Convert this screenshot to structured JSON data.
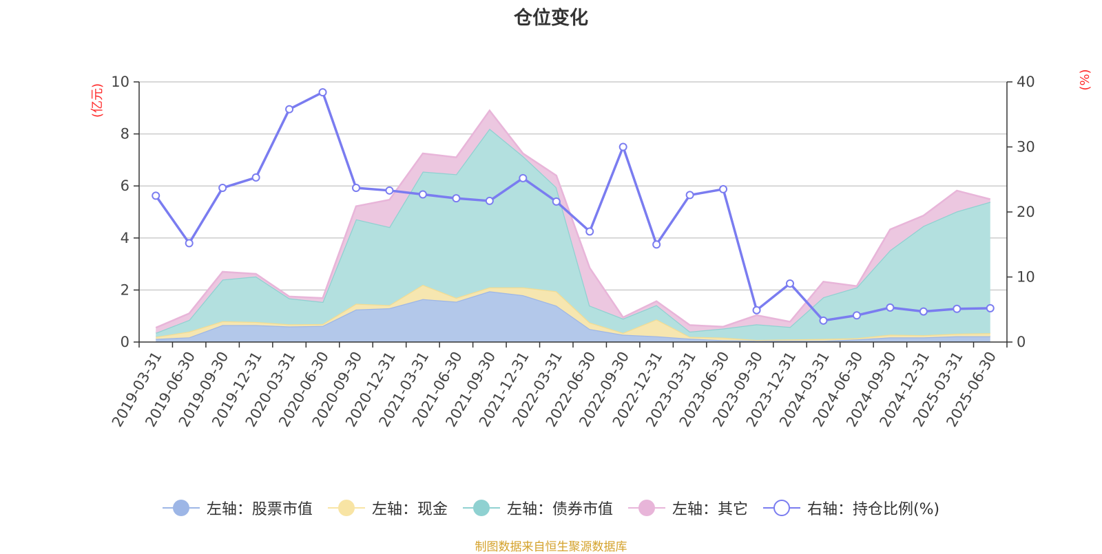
{
  "title": "仓位变化",
  "source_note": "制图数据来自恒生聚源数据库",
  "legend": [
    {
      "label": "左轴：股票市值",
      "color": "#9db6e6",
      "icon": "filled-circle-icon"
    },
    {
      "label": "左轴：现金",
      "color": "#f8e4a4",
      "icon": "filled-circle-icon"
    },
    {
      "label": "左轴：债券市值",
      "color": "#8fd1d1",
      "icon": "filled-circle-icon"
    },
    {
      "label": "左轴：其它",
      "color": "#e8b5d9",
      "icon": "filled-circle-icon"
    },
    {
      "label": "右轴：持仓比例(%)",
      "color": "#7a7cf0",
      "icon": "hollow-circle-icon"
    }
  ],
  "chart_data": {
    "type": "area",
    "stacked": true,
    "categories": [
      "2019-03-31",
      "2019-06-30",
      "2019-09-30",
      "2019-12-31",
      "2020-03-31",
      "2020-06-30",
      "2020-09-30",
      "2020-12-31",
      "2021-03-31",
      "2021-06-30",
      "2021-09-30",
      "2021-12-31",
      "2022-03-31",
      "2022-06-30",
      "2022-09-30",
      "2022-12-31",
      "2023-03-31",
      "2023-06-30",
      "2023-09-30",
      "2023-12-31",
      "2024-03-31",
      "2024-06-30",
      "2024-09-30",
      "2024-12-31",
      "2025-03-31",
      "2025-06-30"
    ],
    "y_left": {
      "unit": "(亿元)",
      "min": 0,
      "max": 10,
      "ticks": [
        0,
        2,
        4,
        6,
        8,
        10
      ]
    },
    "y_right": {
      "unit": "(%)",
      "min": 0,
      "max": 40,
      "ticks": [
        0,
        10,
        20,
        30,
        40
      ]
    },
    "series": [
      {
        "name": "左轴：股票市值",
        "axis": "left",
        "type": "area",
        "color": "#b3c8ea",
        "line_color": "#9db6e6",
        "values": [
          0.12,
          0.18,
          0.65,
          0.65,
          0.6,
          0.62,
          1.25,
          1.3,
          1.65,
          1.55,
          1.95,
          1.8,
          1.4,
          0.5,
          0.28,
          0.22,
          0.13,
          0.07,
          0.05,
          0.05,
          0.05,
          0.1,
          0.18,
          0.18,
          0.22,
          0.22
        ]
      },
      {
        "name": "左轴：现金",
        "axis": "left",
        "type": "area",
        "color": "#f6e6b0",
        "line_color": "#f2dc93",
        "values": [
          0.08,
          0.22,
          0.15,
          0.12,
          0.08,
          0.07,
          0.22,
          0.12,
          0.55,
          0.15,
          0.15,
          0.3,
          0.55,
          0.25,
          0.07,
          0.65,
          0.07,
          0.1,
          0.03,
          0.05,
          0.07,
          0.05,
          0.1,
          0.08,
          0.1,
          0.12
        ]
      },
      {
        "name": "左轴：债券市值",
        "axis": "left",
        "type": "area",
        "color": "#b3e0df",
        "line_color": "#8fd1d1",
        "values": [
          0.15,
          0.45,
          1.6,
          1.75,
          1.0,
          0.85,
          3.25,
          3.0,
          4.35,
          4.75,
          6.1,
          5.05,
          4.0,
          0.65,
          0.55,
          0.55,
          0.2,
          0.35,
          0.6,
          0.48,
          1.6,
          1.95,
          3.25,
          4.2,
          4.7,
          5.05
        ]
      },
      {
        "name": "左轴：其它",
        "axis": "left",
        "type": "area",
        "color": "#ecc7e0",
        "line_color": "#e8b5d9",
        "values": [
          0.2,
          0.25,
          0.3,
          0.1,
          0.07,
          0.15,
          0.5,
          1.05,
          0.7,
          0.65,
          0.7,
          0.1,
          0.45,
          1.45,
          0.05,
          0.15,
          0.25,
          0.07,
          0.35,
          0.2,
          0.6,
          0.05,
          0.8,
          0.4,
          0.8,
          0.1
        ]
      },
      {
        "name": "右轴：持仓比例(%)",
        "axis": "right",
        "type": "line",
        "color": "#7a7cf0",
        "values": [
          22.5,
          15.2,
          23.7,
          25.3,
          35.8,
          38.4,
          23.7,
          23.3,
          22.7,
          22.1,
          21.7,
          25.2,
          21.6,
          17.0,
          30.0,
          15.0,
          22.6,
          23.5,
          4.9,
          9.0,
          3.3,
          4.1,
          5.3,
          4.7,
          5.1,
          5.2
        ]
      }
    ]
  }
}
